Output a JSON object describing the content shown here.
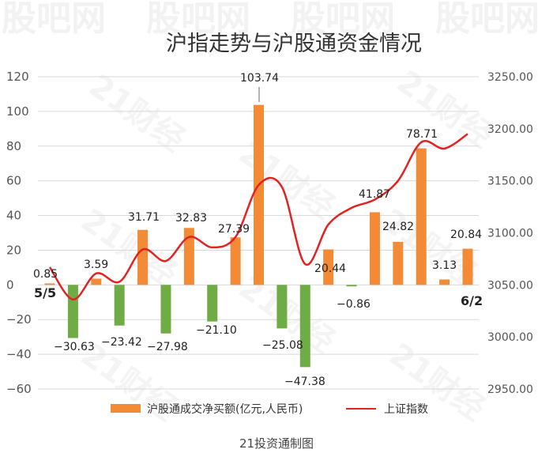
{
  "watermark_top": "股吧网",
  "watermark_diag": "21财经",
  "chart_data": {
    "type": "bar+line",
    "title": "沪指走势与沪股通资金情况",
    "start_label": "5/5",
    "end_label": "6/2",
    "left_axis": {
      "ylim": [
        -60,
        120
      ],
      "ticks": [
        -60,
        -40,
        -20,
        0,
        20,
        40,
        60,
        80,
        100,
        120
      ]
    },
    "right_axis": {
      "ylim": [
        2950,
        3250
      ],
      "ticks": [
        "2950.00",
        "3000.00",
        "3050.00",
        "3100.00",
        "3150.00",
        "3200.00",
        "3250.00"
      ]
    },
    "bar_series": {
      "name": "沪股通成交净买额(亿元,人民币)",
      "values": [
        0.85,
        -30.63,
        3.59,
        -23.42,
        31.71,
        -27.98,
        32.83,
        -21.1,
        27.39,
        103.74,
        -25.08,
        -47.38,
        20.44,
        -0.86,
        41.87,
        24.82,
        78.71,
        3.13,
        20.84
      ],
      "labels": [
        "0.85",
        "−30.63",
        "3.59",
        "−23.42",
        "31.71",
        "−27.98",
        "32.83",
        "−21.10",
        "27.39",
        "103.74",
        "−25.08",
        "−47.38",
        "20.44",
        "−0.86",
        "41.87",
        "24.82",
        "78.71",
        "3.13",
        "20.84"
      ],
      "positive_color": "#f28a36",
      "negative_color": "#6fac46"
    },
    "line_series": {
      "name": "上证指数",
      "color": "#e32222",
      "values": [
        3067,
        3036,
        3061,
        3053,
        3084,
        3073,
        3096,
        3086,
        3096,
        3146,
        3144,
        3070,
        3108,
        3124,
        3132,
        3150,
        3187,
        3181,
        3195
      ]
    },
    "grid": true,
    "legend": "bottom",
    "source": "21投资通制图"
  }
}
